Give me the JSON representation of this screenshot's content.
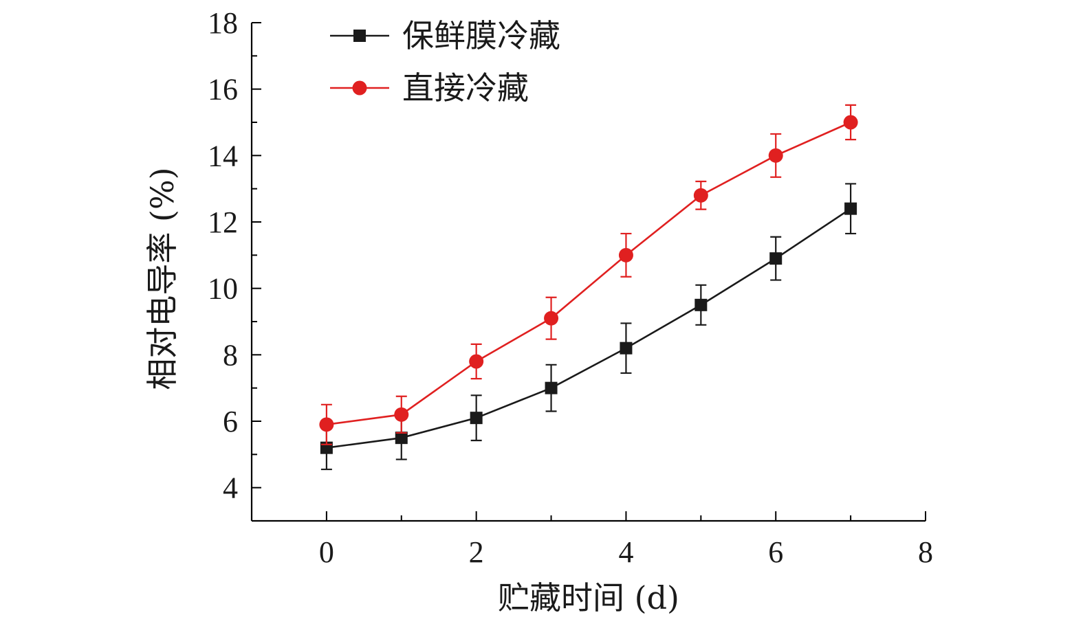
{
  "chart_data": {
    "type": "line",
    "x": [
      0,
      1,
      2,
      3,
      4,
      5,
      6,
      7
    ],
    "xlabel": "贮藏时间 (d)",
    "ylabel": "相对电导率 (%)",
    "xlim": [
      -1,
      8
    ],
    "ylim": [
      3,
      18
    ],
    "xticks": [
      0,
      2,
      4,
      6,
      8
    ],
    "yticks": [
      4,
      6,
      8,
      10,
      12,
      14,
      16,
      18
    ],
    "grid": false,
    "legend_position": "top-left",
    "series": [
      {
        "name": "保鲜膜冷藏",
        "color": "#1a1a1a",
        "marker": "square",
        "values": [
          5.2,
          5.5,
          6.1,
          7.0,
          8.2,
          9.5,
          10.9,
          12.4
        ],
        "errors": [
          0.65,
          0.65,
          0.68,
          0.7,
          0.75,
          0.6,
          0.65,
          0.75
        ]
      },
      {
        "name": "直接冷藏",
        "color": "#e02020",
        "marker": "circle",
        "values": [
          5.9,
          6.2,
          7.8,
          9.1,
          11.0,
          12.8,
          14.0,
          15.0
        ],
        "errors": [
          0.6,
          0.55,
          0.52,
          0.63,
          0.65,
          0.42,
          0.65,
          0.52
        ]
      }
    ]
  }
}
